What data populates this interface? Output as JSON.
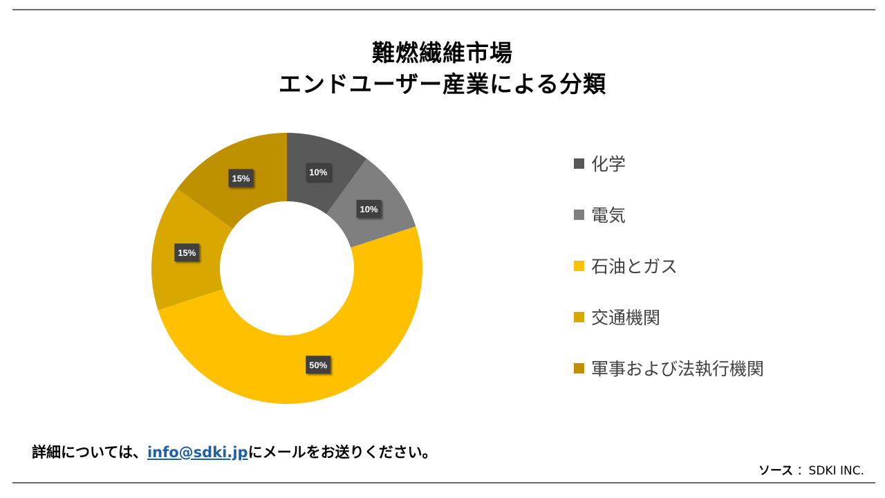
{
  "chart_data": {
    "type": "pie",
    "title_line1": "難燃繊維市場",
    "title_line2": "エンドユーザー産業による分類",
    "categories": [
      "化学",
      "電気",
      "石油とガス",
      "交通機関",
      "軍事および法執行機関"
    ],
    "values": [
      10,
      10,
      50,
      15,
      15
    ],
    "data_labels": [
      "10%",
      "10%",
      "50%",
      "15%",
      "15%"
    ],
    "colors": [
      "#595959",
      "#7f7f7f",
      "#ffc000",
      "#d9a800",
      "#bf9000"
    ],
    "legend_position": "right",
    "style": "donut"
  },
  "footer": {
    "text_before": "詳細については、",
    "email": "info@sdki.jp",
    "text_after": "にメールをお送りください。"
  },
  "source": {
    "label": "ソース",
    "value": "：SDKI INC."
  }
}
